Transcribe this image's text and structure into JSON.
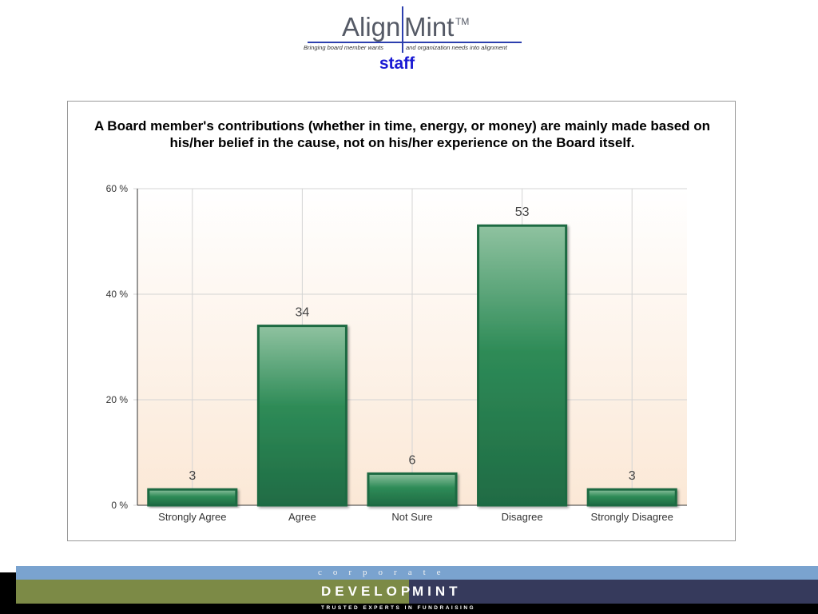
{
  "header": {
    "logo_align": "Align",
    "logo_mint": "Mint",
    "logo_tm": "TM",
    "tagline_left": "Bringing board member wants",
    "tagline_right": "and organization needs into alignment",
    "subtitle": "staff"
  },
  "chart_data": {
    "type": "bar",
    "title": "A Board member's contributions (whether in time, energy, or money) are mainly made based on his/her belief in the cause, not on his/her experience on the Board itself.",
    "categories": [
      "Strongly Agree",
      "Agree",
      "Not Sure",
      "Disagree",
      "Strongly Disagree"
    ],
    "values": [
      3,
      34,
      6,
      53,
      3
    ],
    "data_labels": [
      "3",
      "34",
      "6",
      "53",
      "3"
    ],
    "ylim": [
      0,
      60
    ],
    "yticks": [
      0,
      20,
      40,
      60
    ],
    "ytick_labels": [
      "0 %",
      "20 %",
      "40 %",
      "60 %"
    ],
    "xlabel": "",
    "ylabel": "",
    "grid": true,
    "colors": {
      "bar_top": "#8fc2a0",
      "bar_mid": "#2e8b57",
      "bar_bottom": "#1f6b44",
      "bar_border": "#1d6a42",
      "plot_bg_top": "#ffffff",
      "plot_bg_bottom": "#fbe8d6",
      "grid": "#d4d4d4"
    }
  },
  "footer": {
    "corporate": "corporate",
    "develop": "DEVELOP",
    "mint": "MINT",
    "tagline": "TRUSTED EXPERTS IN FUNDRAISING"
  }
}
